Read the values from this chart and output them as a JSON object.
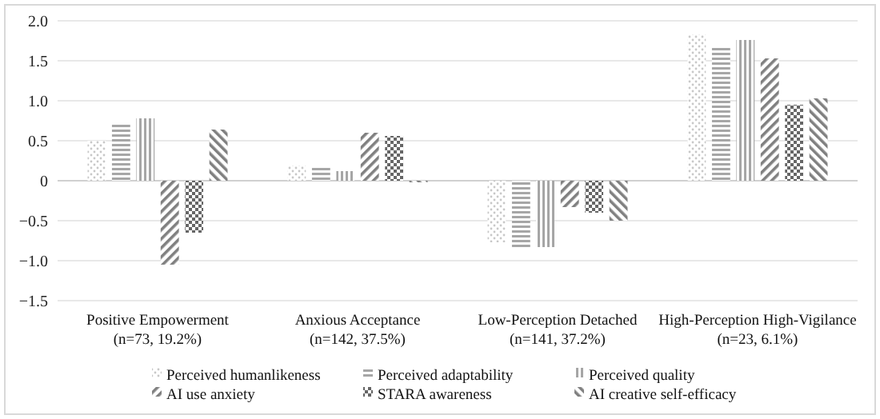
{
  "chart_data": {
    "type": "bar",
    "categories": [
      "Positive Empowerment\n(n=73, 19.2%)",
      "Anxious Acceptance\n(n=142, 37.5%)",
      "Low-Perception Detached\n(n=141, 37.2%)",
      "High-Perception High-Vigilance\n(n=23, 6.1%)"
    ],
    "series": [
      {
        "name": "Perceived humanlikeness",
        "color": "#c8c8c8",
        "values": [
          0.5,
          0.19,
          -0.77,
          1.83
        ]
      },
      {
        "name": "Perceived adaptability",
        "color": "#a6a6a6",
        "values": [
          0.71,
          0.19,
          -0.83,
          1.66
        ]
      },
      {
        "name": "Perceived quality",
        "color": "#a6a6a6",
        "values": [
          0.78,
          0.12,
          -0.83,
          1.76
        ]
      },
      {
        "name": "AI use anxiety",
        "color": "#808080",
        "values": [
          -1.05,
          0.6,
          -0.33,
          1.53
        ]
      },
      {
        "name": "STARA awareness",
        "color": "#666666",
        "values": [
          -0.65,
          0.56,
          -0.4,
          0.95
        ]
      },
      {
        "name": "AI creative self-efficacy",
        "color": "#808080",
        "values": [
          0.64,
          -0.02,
          -0.5,
          1.03
        ]
      }
    ],
    "ylim": [
      -1.5,
      2
    ],
    "yticks": [
      {
        "value": -1.5,
        "label": "−1.5"
      },
      {
        "value": -1,
        "label": "−1.0"
      },
      {
        "value": -0.5,
        "label": "−0.5"
      },
      0,
      {
        "value": 0.5,
        "label": "0.5"
      },
      {
        "value": 1,
        "label": "1.0"
      },
      {
        "value": 1.5,
        "label": "1.5"
      },
      {
        "value": 2,
        "label": "2.0"
      }
    ],
    "grid": "y",
    "legend": "bottom"
  }
}
